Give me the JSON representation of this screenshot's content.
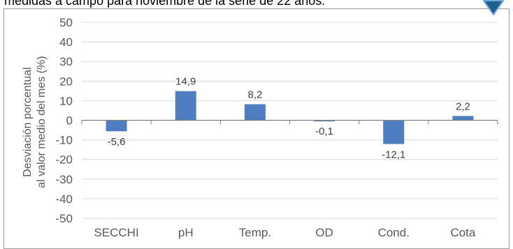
{
  "header": {
    "title": "medidas a campo para noviembre de la serie de 22 años."
  },
  "chart_data": {
    "type": "bar",
    "categories": [
      "SECCHI",
      "pH",
      "Temp.",
      "OD",
      "Cond.",
      "Cota"
    ],
    "values": [
      -5.6,
      14.9,
      8.2,
      -0.1,
      -12.1,
      2.2
    ],
    "data_labels": [
      "-5,6",
      "14,9",
      "8,2",
      "-0,1",
      "-12,1",
      "2,2"
    ],
    "ylabel_line1": "Desviación porcentual",
    "ylabel_line2": "al valor medio del mes (%)",
    "ylim": [
      -50,
      50
    ],
    "yticks": [
      50,
      40,
      30,
      20,
      10,
      0,
      -10,
      -20,
      -30,
      -40,
      -50
    ],
    "grid": true,
    "legend": "none",
    "bar_color": "#4e7ec1",
    "grid_color": "#d9d9d9",
    "axis_color": "#7f7f7f"
  },
  "decor": {
    "marker_color": "#1f5f8f"
  }
}
